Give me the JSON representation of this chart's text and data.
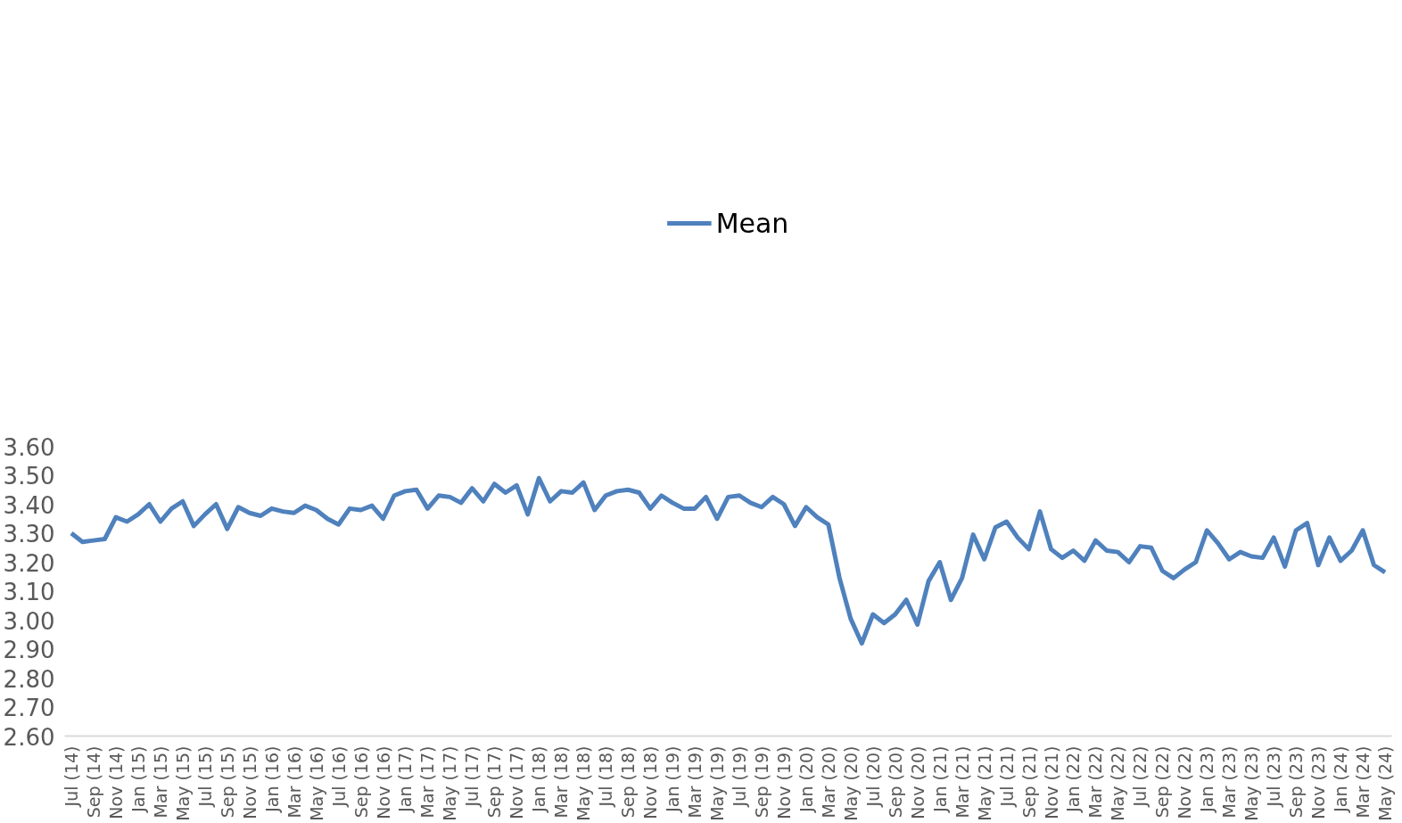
{
  "chart_data": {
    "type": "line",
    "categories": [
      "Jul (14)",
      null,
      "Sep (14)",
      null,
      "Nov (14)",
      null,
      "Jan (15)",
      null,
      "Mar (15)",
      null,
      "May (15)",
      null,
      "Jul (15)",
      null,
      "Sep (15)",
      null,
      "Nov (15)",
      null,
      "Jan (16)",
      null,
      "Mar (16)",
      null,
      "May (16)",
      null,
      "Jul (16)",
      null,
      "Sep (16)",
      null,
      "Nov (16)",
      null,
      "Jan (17)",
      null,
      "Mar (17)",
      null,
      "May (17)",
      null,
      "Jul (17)",
      null,
      "Sep (17)",
      null,
      "Nov (17)",
      null,
      "Jan (18)",
      null,
      "Mar (18)",
      null,
      "May (18)",
      null,
      "Jul (18)",
      null,
      "Sep (18)",
      null,
      "Nov (18)",
      null,
      "Jan (19)",
      null,
      "Mar (19)",
      null,
      "May (19)",
      null,
      "Jul (19)",
      null,
      "Sep (19)",
      null,
      "Nov (19)",
      null,
      "Jan (20)",
      null,
      "Mar (20)",
      null,
      "May (20)",
      null,
      "Jul (20)",
      null,
      "Sep (20)",
      null,
      "Nov (20)",
      null,
      "Jan (21)",
      null,
      "Mar (21)",
      null,
      "May (21)",
      null,
      "Jul (21)",
      null,
      "Sep (21)",
      null,
      "Nov (21)",
      null,
      "Jan (22)",
      null,
      "Mar (22)",
      null,
      "May (22)",
      null,
      "Jul (22)",
      null,
      "Sep (22)",
      null,
      "Nov (22)",
      null,
      "Jan (23)",
      null,
      "Mar (23)",
      null,
      "May (23)",
      null,
      "Jul (23)",
      null,
      "Sep (23)",
      null,
      "Nov (23)",
      null,
      "Jan (24)",
      null,
      "Mar (24)",
      null,
      "May (24)"
    ],
    "series": [
      {
        "name": "Mean",
        "color": "#4f81bd",
        "values": [
          3.3,
          3.27,
          3.275,
          3.28,
          3.355,
          3.34,
          3.365,
          3.4,
          3.34,
          3.385,
          3.41,
          3.325,
          3.365,
          3.4,
          3.315,
          3.39,
          3.37,
          3.36,
          3.385,
          3.375,
          3.37,
          3.395,
          3.38,
          3.35,
          3.33,
          3.385,
          3.38,
          3.395,
          3.35,
          3.43,
          3.445,
          3.45,
          3.385,
          3.43,
          3.425,
          3.405,
          3.455,
          3.41,
          3.47,
          3.44,
          3.465,
          3.365,
          3.49,
          3.41,
          3.445,
          3.44,
          3.475,
          3.38,
          3.43,
          3.445,
          3.45,
          3.44,
          3.385,
          3.43,
          3.405,
          3.385,
          3.385,
          3.425,
          3.35,
          3.425,
          3.43,
          3.405,
          3.39,
          3.425,
          3.4,
          3.325,
          3.39,
          3.355,
          3.33,
          3.145,
          3.005,
          2.92,
          3.02,
          2.99,
          3.02,
          3.07,
          2.985,
          3.135,
          3.2,
          3.07,
          3.145,
          3.295,
          3.21,
          3.32,
          3.34,
          3.285,
          3.245,
          3.375,
          3.245,
          3.215,
          3.24,
          3.205,
          3.275,
          3.24,
          3.235,
          3.2,
          3.255,
          3.25,
          3.17,
          3.145,
          3.175,
          3.2,
          3.31,
          3.265,
          3.21,
          3.235,
          3.22,
          3.215,
          3.285,
          3.185,
          3.31,
          3.335,
          3.19,
          3.285,
          3.205,
          3.24,
          3.31,
          3.19,
          3.165
        ]
      }
    ],
    "ylim": [
      2.6,
      3.6
    ],
    "yticks": [
      {
        "value": 2.6,
        "label": "2.60"
      },
      {
        "value": 2.7,
        "label": "2.70"
      },
      {
        "value": 2.8,
        "label": "2.80"
      },
      {
        "value": 2.9,
        "label": "2.90"
      },
      {
        "value": 3.0,
        "label": "3.00"
      },
      {
        "value": 3.1,
        "label": "3.10"
      },
      {
        "value": 3.2,
        "label": "3.20"
      },
      {
        "value": 3.3,
        "label": "3.30"
      },
      {
        "value": 3.4,
        "label": "3.40"
      },
      {
        "value": 3.5,
        "label": "3.50"
      },
      {
        "value": 3.6,
        "label": "3.60"
      }
    ],
    "grid": false,
    "legend": "top",
    "marker": "none",
    "line_style": "solid"
  }
}
